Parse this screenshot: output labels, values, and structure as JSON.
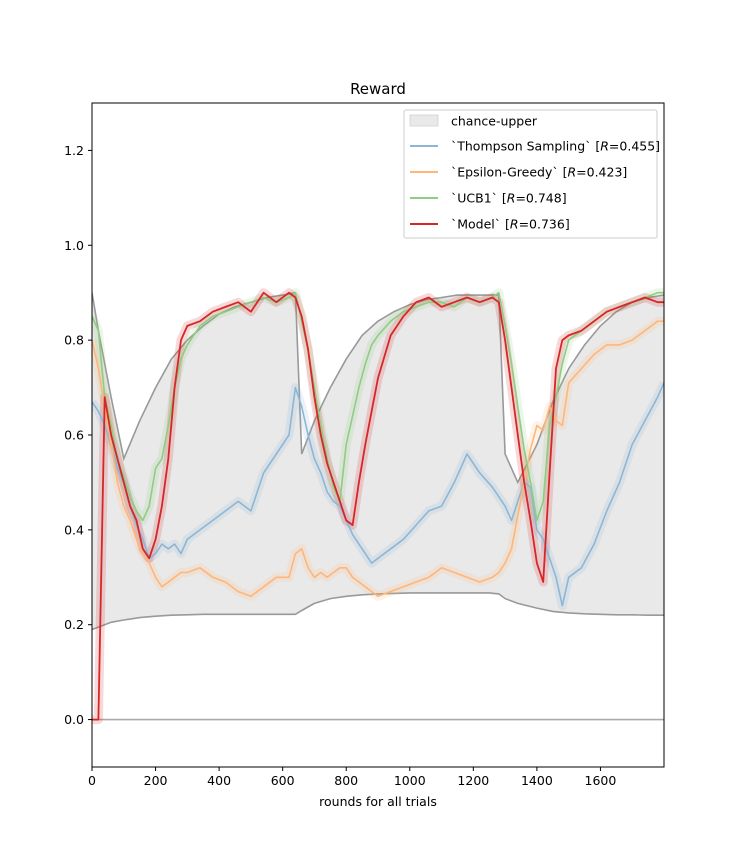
{
  "chart_data": {
    "type": "line",
    "title": "Reward",
    "xlabel": "rounds for all trials",
    "ylabel": "",
    "xlim": [
      0,
      1800
    ],
    "ylim": [
      -0.1,
      1.3
    ],
    "xticks": [
      0,
      200,
      400,
      600,
      800,
      1000,
      1200,
      1400,
      1600
    ],
    "xtick_labels": [
      "0",
      "200",
      "400",
      "600",
      "800",
      "1000",
      "1200",
      "1400",
      "1600"
    ],
    "yticks": [
      0.0,
      0.2,
      0.4,
      0.6,
      0.8,
      1.0,
      1.2
    ],
    "ytick_labels": [
      "0.0",
      "0.2",
      "0.4",
      "0.6",
      "0.8",
      "1.0",
      "1.2"
    ],
    "grid": false,
    "legend_position": "top-right",
    "reference_line": {
      "y": 0.0,
      "color": "#aaaaaa"
    },
    "chance_band": {
      "name": "chance-upper",
      "color": "#e9e9e9",
      "line_color": "#999999",
      "x": [
        0,
        20,
        60,
        100,
        150,
        200,
        250,
        300,
        350,
        400,
        450,
        500,
        550,
        600,
        640,
        660,
        700,
        750,
        800,
        850,
        900,
        950,
        1000,
        1050,
        1100,
        1150,
        1200,
        1250,
        1280,
        1300,
        1340,
        1400,
        1450,
        1500,
        1550,
        1600,
        1650,
        1700,
        1750,
        1800
      ],
      "upper": [
        0.9,
        0.82,
        0.68,
        0.55,
        0.63,
        0.7,
        0.76,
        0.8,
        0.83,
        0.855,
        0.87,
        0.88,
        0.89,
        0.895,
        0.9,
        0.56,
        0.63,
        0.7,
        0.76,
        0.81,
        0.84,
        0.86,
        0.875,
        0.885,
        0.89,
        0.895,
        0.895,
        0.895,
        0.895,
        0.56,
        0.5,
        0.58,
        0.67,
        0.74,
        0.79,
        0.83,
        0.86,
        0.88,
        0.89,
        0.895
      ],
      "lower": [
        0.19,
        0.195,
        0.205,
        0.21,
        0.215,
        0.218,
        0.22,
        0.221,
        0.222,
        0.222,
        0.222,
        0.222,
        0.222,
        0.222,
        0.222,
        0.23,
        0.245,
        0.255,
        0.26,
        0.263,
        0.265,
        0.266,
        0.267,
        0.267,
        0.267,
        0.267,
        0.267,
        0.267,
        0.265,
        0.255,
        0.245,
        0.235,
        0.228,
        0.225,
        0.223,
        0.222,
        0.221,
        0.221,
        0.22,
        0.22
      ]
    },
    "x": [
      0,
      20,
      40,
      60,
      80,
      100,
      120,
      140,
      160,
      180,
      200,
      220,
      240,
      260,
      280,
      300,
      340,
      380,
      420,
      460,
      500,
      540,
      580,
      620,
      640,
      660,
      680,
      700,
      720,
      740,
      760,
      780,
      800,
      820,
      840,
      860,
      880,
      900,
      940,
      980,
      1020,
      1060,
      1100,
      1140,
      1180,
      1220,
      1260,
      1280,
      1300,
      1320,
      1340,
      1360,
      1380,
      1400,
      1420,
      1440,
      1460,
      1480,
      1500,
      1540,
      1580,
      1620,
      1660,
      1700,
      1740,
      1780,
      1800
    ],
    "series": [
      {
        "name": "`Thompson Sampling` [R=0.455]",
        "color": "#8db6d6",
        "values": [
          0.67,
          0.65,
          0.62,
          0.58,
          0.53,
          0.5,
          0.45,
          0.41,
          0.38,
          0.34,
          0.35,
          0.37,
          0.36,
          0.37,
          0.35,
          0.38,
          0.4,
          0.42,
          0.44,
          0.46,
          0.44,
          0.52,
          0.56,
          0.6,
          0.7,
          0.66,
          0.6,
          0.55,
          0.52,
          0.48,
          0.46,
          0.45,
          0.42,
          0.39,
          0.37,
          0.35,
          0.33,
          0.34,
          0.36,
          0.38,
          0.41,
          0.44,
          0.45,
          0.5,
          0.56,
          0.52,
          0.49,
          0.47,
          0.45,
          0.42,
          0.46,
          0.5,
          0.49,
          0.4,
          0.38,
          0.34,
          0.3,
          0.24,
          0.3,
          0.32,
          0.37,
          0.44,
          0.5,
          0.58,
          0.63,
          0.68,
          0.71
        ]
      },
      {
        "name": "`Epsilon-Greedy` [R=0.423]",
        "color": "#ffb67a",
        "values": [
          0.8,
          0.74,
          0.66,
          0.58,
          0.5,
          0.45,
          0.42,
          0.38,
          0.35,
          0.33,
          0.3,
          0.28,
          0.29,
          0.3,
          0.31,
          0.31,
          0.32,
          0.3,
          0.29,
          0.27,
          0.26,
          0.28,
          0.3,
          0.3,
          0.35,
          0.36,
          0.32,
          0.3,
          0.31,
          0.3,
          0.31,
          0.32,
          0.32,
          0.3,
          0.29,
          0.28,
          0.27,
          0.26,
          0.27,
          0.28,
          0.29,
          0.3,
          0.32,
          0.31,
          0.3,
          0.29,
          0.3,
          0.31,
          0.33,
          0.36,
          0.43,
          0.5,
          0.57,
          0.62,
          0.61,
          0.66,
          0.63,
          0.62,
          0.71,
          0.74,
          0.77,
          0.79,
          0.79,
          0.8,
          0.82,
          0.84,
          0.84
        ]
      },
      {
        "name": "`UCB1` [R=0.748]",
        "color": "#8fcc84",
        "values": [
          0.85,
          0.82,
          0.68,
          0.62,
          0.55,
          0.51,
          0.47,
          0.44,
          0.42,
          0.45,
          0.53,
          0.55,
          0.62,
          0.7,
          0.76,
          0.79,
          0.83,
          0.85,
          0.86,
          0.87,
          0.88,
          0.89,
          0.88,
          0.89,
          0.9,
          0.84,
          0.78,
          0.7,
          0.62,
          0.55,
          0.49,
          0.46,
          0.58,
          0.64,
          0.7,
          0.75,
          0.79,
          0.81,
          0.84,
          0.86,
          0.87,
          0.88,
          0.88,
          0.87,
          0.89,
          0.88,
          0.89,
          0.9,
          0.83,
          0.75,
          0.66,
          0.57,
          0.5,
          0.42,
          0.46,
          0.62,
          0.68,
          0.75,
          0.8,
          0.82,
          0.84,
          0.86,
          0.87,
          0.88,
          0.89,
          0.9,
          0.9
        ]
      },
      {
        "name": "`Model` [R=0.736]",
        "color": "#d62728",
        "values": [
          0.0,
          0.0,
          0.68,
          0.6,
          0.55,
          0.5,
          0.45,
          0.42,
          0.36,
          0.34,
          0.38,
          0.45,
          0.55,
          0.7,
          0.8,
          0.83,
          0.84,
          0.86,
          0.87,
          0.88,
          0.86,
          0.9,
          0.88,
          0.9,
          0.89,
          0.85,
          0.78,
          0.68,
          0.6,
          0.54,
          0.5,
          0.46,
          0.42,
          0.41,
          0.5,
          0.58,
          0.65,
          0.72,
          0.81,
          0.85,
          0.88,
          0.89,
          0.87,
          0.88,
          0.89,
          0.88,
          0.89,
          0.88,
          0.8,
          0.7,
          0.6,
          0.5,
          0.42,
          0.33,
          0.29,
          0.52,
          0.74,
          0.8,
          0.81,
          0.82,
          0.84,
          0.86,
          0.87,
          0.88,
          0.89,
          0.88,
          0.88
        ]
      }
    ],
    "legend_labels": [
      {
        "prefix": "chance-upper",
        "italic": "",
        "suffix": ""
      },
      {
        "prefix": "`Thompson Sampling` [",
        "italic": "R",
        "suffix": "=0.455]"
      },
      {
        "prefix": "`Epsilon-Greedy` [",
        "italic": "R",
        "suffix": "=0.423]"
      },
      {
        "prefix": "`UCB1` [",
        "italic": "R",
        "suffix": "=0.748]"
      },
      {
        "prefix": "`Model` [",
        "italic": "R",
        "suffix": "=0.736]"
      }
    ]
  }
}
